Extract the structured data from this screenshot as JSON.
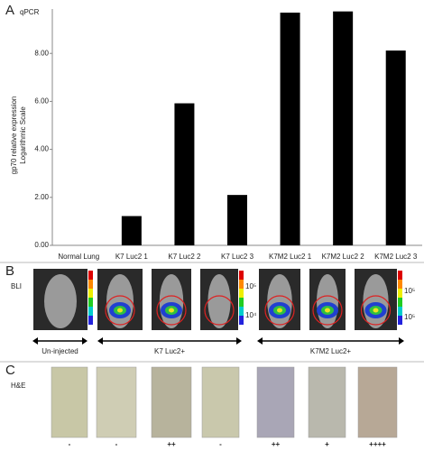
{
  "chart_data": {
    "type": "bar",
    "panel_label": "A",
    "subtitle": "qPCR",
    "y_label": [
      "gp70 relative expression",
      "Logarithmic Scale"
    ],
    "categories": [
      "Normal Lung",
      "K7 Luc2 1",
      "K7 Luc2 2",
      "K7 Luc2 3",
      "K7M2 Luc2 1",
      "K7M2 Luc2 2",
      "K7M2 Luc2 3"
    ],
    "values": [
      0,
      1.22,
      5.92,
      2.1,
      9.7,
      9.75,
      8.12
    ],
    "color": "#000000",
    "ylim": [
      0,
      9.85
    ],
    "yticks": [
      {
        "value": 0,
        "label": "0.00"
      },
      {
        "value": 2,
        "label": "2.00"
      },
      {
        "value": 4,
        "label": "4.00"
      },
      {
        "value": 6,
        "label": "6.00"
      },
      {
        "value": 8,
        "label": "8.00"
      }
    ],
    "grid": false
  },
  "bli": {
    "panel_label": "B",
    "label": "BLI",
    "scale_labels": [
      "10⁵",
      "10⁴",
      "10⁵",
      "10⁵"
    ],
    "groups": [
      "Un-injected",
      "K7 Luc2+",
      "K7M2 Luc2+"
    ]
  },
  "he": {
    "panel_label": "C",
    "label": "H&E",
    "scores": [
      "-",
      "-",
      "++",
      "-",
      "++",
      "+",
      "++++"
    ]
  }
}
